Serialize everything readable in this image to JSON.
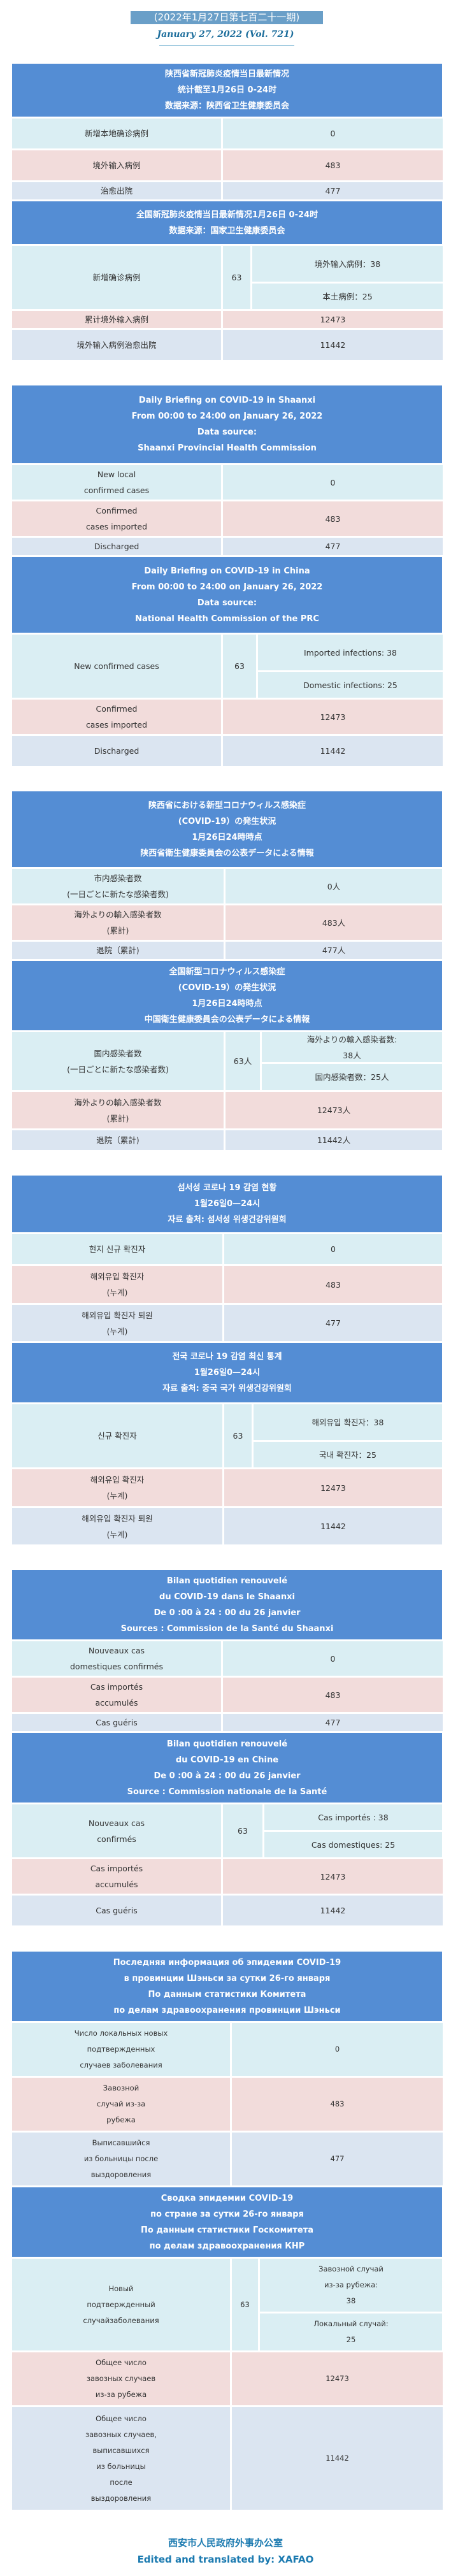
{
  "header": {
    "issue_cn": "(2022年1月27日第七百二十一期)",
    "issue_en": "January 27, 2022 (Vol. 721)"
  },
  "colors": {
    "header_blue": "#548dd4",
    "row_local": "#daeef3",
    "row_imported": "#f2dcdb",
    "row_discharged": "#dbe5f1"
  },
  "sections": {
    "cn": {
      "prov": {
        "title": [
          "陕西省新冠肺炎疫情当日最新情况",
          "统计截至1月26日 0-24时",
          "数据来源：陕西省卫生健康委员会"
        ],
        "rows": [
          {
            "label": [
              "新增本地确诊病例"
            ],
            "value": "0"
          },
          {
            "label": [
              "境外输入病例"
            ],
            "value": "483"
          },
          {
            "label": [
              "治愈出院"
            ],
            "value": "477"
          }
        ]
      },
      "nat": {
        "title": [
          "全国新冠肺炎疫情当日最新情况1月26日 0-24时",
          "数据来源：国家卫生健康委员会"
        ],
        "new": {
          "label": [
            "新增确诊病例"
          ],
          "total": "63",
          "imported": [
            "境外输入病例：38"
          ],
          "domestic": [
            "本土病例：25"
          ]
        },
        "rows": [
          {
            "label": [
              "累计境外输入病例"
            ],
            "value": "12473"
          },
          {
            "label": [
              "境外输入病例治愈出院"
            ],
            "value": "11442"
          }
        ]
      }
    },
    "en": {
      "prov": {
        "title": [
          "Daily Briefing on COVID-19 in Shaanxi",
          "From 00:00 to 24:00 on January 26, 2022",
          "Data source:",
          "Shaanxi Provincial Health Commission"
        ],
        "rows": [
          {
            "label": [
              "New local",
              "confirmed cases"
            ],
            "value": "0"
          },
          {
            "label": [
              "Confirmed",
              "cases imported"
            ],
            "value": "483"
          },
          {
            "label": [
              "Discharged"
            ],
            "value": "477"
          }
        ]
      },
      "nat": {
        "title": [
          "Daily Briefing on COVID-19 in China",
          "From 00:00 to 24:00 on  January 26,  2022",
          "Data source:",
          "National Health Commission of the PRC"
        ],
        "new": {
          "label": [
            "New confirmed cases"
          ],
          "total": "63",
          "imported": [
            "Imported infections: 38"
          ],
          "domestic": [
            "Domestic infections: 25"
          ]
        },
        "rows": [
          {
            "label": [
              "Confirmed",
              "cases imported"
            ],
            "value": "12473"
          },
          {
            "label": [
              "Discharged"
            ],
            "value": "11442"
          }
        ]
      }
    },
    "ja": {
      "prov": {
        "title": [
          "陕西省における新型コロナウィルス感染症",
          "(COVID-19）の発生状況",
          "1月26日24時時点",
          "陕西省衛生健康委員会の公表データによる情報"
        ],
        "rows": [
          {
            "label": [
              "市内感染者数",
              "(一日ごとに新たな感染者数)"
            ],
            "value": "0人"
          },
          {
            "label": [
              "海外よりの輸入感染者数",
              "(累計)"
            ],
            "value": "483人"
          },
          {
            "label": [
              "退院（累計)"
            ],
            "value": "477人"
          }
        ]
      },
      "nat": {
        "title": [
          "全国新型コロナウィルス感染症",
          "(COVID-19）の発生状況",
          "1月26日24時時点",
          "中国衛生健康委員会の公表データによる情報"
        ],
        "new": {
          "label": [
            "国内感染者数",
            "(一日ごとに新たな感染者数)"
          ],
          "total": "63人",
          "imported": [
            "海外よりの輸入感染者数:",
            "38人"
          ],
          "domestic": [
            "国内感染者数：25人"
          ]
        },
        "rows": [
          {
            "label": [
              "海外よりの輸入感染者数",
              "(累計)"
            ],
            "value": "12473人"
          },
          {
            "label": [
              "退院（累計)"
            ],
            "value": "11442人"
          }
        ]
      }
    },
    "ko": {
      "prov": {
        "title": [
          "섬서성 코로나 19 감염 현황",
          "1월26일0—24시",
          "자료 출처: 섬서성 위생건강위원회"
        ],
        "rows": [
          {
            "label": [
              "현지 신규 확진자"
            ],
            "value": "0"
          },
          {
            "label": [
              "해외유입 확진자",
              "(누계)"
            ],
            "value": "483"
          },
          {
            "label": [
              "해외유입 확진자 퇴원",
              "(누계)"
            ],
            "value": "477"
          }
        ]
      },
      "nat": {
        "title": [
          "전국 코로나 19 감염 최신 통계",
          "1월26일0—24시",
          "자료 출처: 중국 국가 위생건강위원회"
        ],
        "new": {
          "label": [
            "신규 확진자"
          ],
          "total": "63",
          "imported": [
            "해외유입 확진자：38"
          ],
          "domestic": [
            "국내 확진자：25"
          ]
        },
        "rows": [
          {
            "label": [
              "해외유입 확진자",
              "(누계)"
            ],
            "value": "12473"
          },
          {
            "label": [
              "해외유입 확진자 퇴원",
              "(누계)"
            ],
            "value": "11442"
          }
        ]
      }
    },
    "fr": {
      "prov": {
        "title": [
          "Bilan quotidien renouvelé",
          "du COVID-19 dans le Shaanxi",
          "De 0 :00 à 24 : 00 du 26 janvier",
          "Sources : Commission de la Santé du Shaanxi"
        ],
        "rows": [
          {
            "label": [
              "Nouveaux cas",
              "domestiques confirmés"
            ],
            "value": "0"
          },
          {
            "label": [
              "Cas importés",
              "accumulés"
            ],
            "value": "483"
          },
          {
            "label": [
              "Cas guéris"
            ],
            "value": "477"
          }
        ]
      },
      "nat": {
        "title": [
          "Bilan quotidien renouvelé",
          "du COVID-19 en Chine",
          "De 0 :00 à 24 : 00 du 26 janvier",
          "Source : Commission nationale de la Santé"
        ],
        "new": {
          "label": [
            "Nouveaux cas",
            "confirmés"
          ],
          "total": "63",
          "imported": [
            "Cas importés : 38"
          ],
          "domestic": [
            "Cas domestiques: 25"
          ]
        },
        "rows": [
          {
            "label": [
              "Cas importés",
              "accumulés"
            ],
            "value": "12473"
          },
          {
            "label": [
              "Cas guéris"
            ],
            "value": "11442"
          }
        ]
      }
    },
    "ru": {
      "prov": {
        "title": [
          "Последняя информация об эпидемии COVID-19",
          "в провинции Шэньси за сутки 26-го января",
          "По данным статистики Комитета",
          "по делам здравоохранения провинции Шэньси"
        ],
        "rows": [
          {
            "label": [
              "Число локальных новых",
              "подтвержденных",
              "случаев заболевания"
            ],
            "value": "0"
          },
          {
            "label": [
              "Завозной",
              "случай из-за",
              "рубежа"
            ],
            "value": "483"
          },
          {
            "label": [
              "Выписавшийся",
              "из больницы после",
              "выздоровления"
            ],
            "value": "477"
          }
        ]
      },
      "nat": {
        "title": [
          "Сводка эпидемии COVID-19",
          "по стране за сутки 26-го января",
          "По данным статистики Госкомитета",
          "по делам здравоохранения КНР"
        ],
        "new": {
          "label": [
            "Новый",
            "подтвержденный",
            "случайзаболевания"
          ],
          "total": "63",
          "imported": [
            "Завозной случай",
            "из-за рубежа:",
            "38"
          ],
          "domestic": [
            "Локальный случай:",
            "25"
          ]
        },
        "rows": [
          {
            "label": [
              "Общее число",
              "завозных случаев",
              "из-за рубежа"
            ],
            "value": "12473"
          },
          {
            "label": [
              "Общее число",
              "завозных случаев,",
              "выписавшихся",
              "из больницы",
              "после",
              "выздоровления"
            ],
            "value": "11442"
          }
        ]
      }
    }
  },
  "footer": {
    "office": "西安市人民政府外事办公室",
    "credit": "Edited and translated by: XAFAO"
  }
}
